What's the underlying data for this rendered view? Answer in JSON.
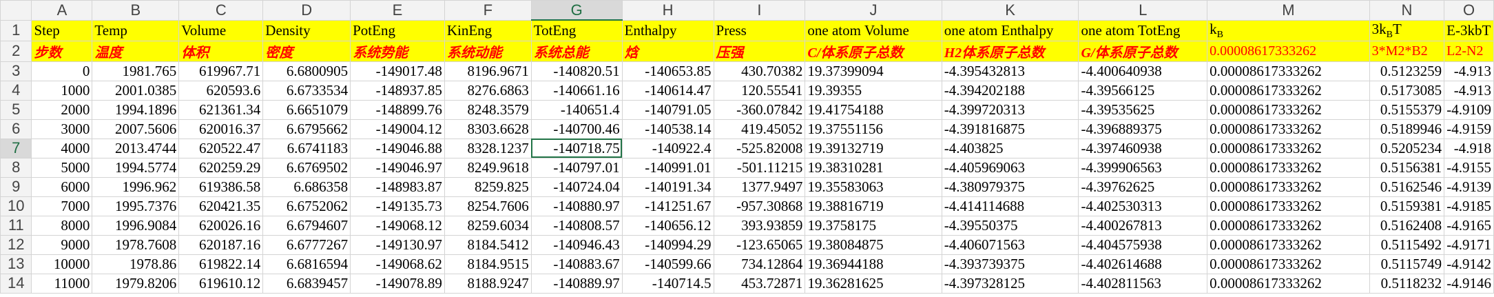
{
  "column_headers": [
    "A",
    "B",
    "C",
    "D",
    "E",
    "F",
    "G",
    "H",
    "I",
    "J",
    "K",
    "L",
    "M",
    "N",
    "O"
  ],
  "selected_column": "G",
  "selected_row": 7,
  "header_row1": [
    "Step",
    "Temp",
    "Volume",
    "Density",
    "PotEng",
    "KinEng",
    "TotEng",
    "Enthalpy",
    "Press",
    "one atom Volume",
    "one atom Enthalpy",
    "one atom TotEng",
    "k",
    "3k",
    "E-3kbT"
  ],
  "header_row1_subscripts": {
    "M": "B",
    "N_sub": "B",
    "N_tail": "T"
  },
  "header_row2": [
    "步数",
    "温度",
    "体积",
    "密度",
    "系统势能",
    "系统动能",
    "系统总能",
    "焓",
    "压强",
    "C/体系原子总数",
    "H2体系原子总数",
    "G/体系原子总数",
    "0.00008617333262",
    "3*M2*B2",
    "L2-N2"
  ],
  "rows": [
    {
      "row": 3,
      "cells": [
        "0",
        "1981.765",
        "619967.71",
        "6.6800905",
        "-149017.48",
        "8196.9671",
        "-140820.51",
        "-140653.85",
        "430.70382",
        "19.37399094",
        "-4.395432813",
        "-4.400640938",
        "0.00008617333262",
        "0.5123259",
        "-4.913"
      ]
    },
    {
      "row": 4,
      "cells": [
        "1000",
        "2001.0385",
        "620593.6",
        "6.6733534",
        "-148937.85",
        "8276.6863",
        "-140661.16",
        "-140614.47",
        "120.55541",
        "19.39355",
        "-4.394202188",
        "-4.39566125",
        "0.00008617333262",
        "0.5173085",
        "-4.913"
      ]
    },
    {
      "row": 5,
      "cells": [
        "2000",
        "1994.1896",
        "621361.34",
        "6.6651079",
        "-148899.76",
        "8248.3579",
        "-140651.4",
        "-140791.05",
        "-360.07842",
        "19.41754188",
        "-4.399720313",
        "-4.39535625",
        "0.00008617333262",
        "0.5155379",
        "-4.9109"
      ]
    },
    {
      "row": 6,
      "cells": [
        "3000",
        "2007.5606",
        "620016.37",
        "6.6795662",
        "-149004.12",
        "8303.6628",
        "-140700.46",
        "-140538.14",
        "419.45052",
        "19.37551156",
        "-4.391816875",
        "-4.396889375",
        "0.00008617333262",
        "0.5189946",
        "-4.9159"
      ]
    },
    {
      "row": 7,
      "cells": [
        "4000",
        "2013.4744",
        "620522.47",
        "6.6741183",
        "-149046.88",
        "8328.1237",
        "-140718.75",
        "-140922.4",
        "-525.82008",
        "19.39132719",
        "-4.403825",
        "-4.397460938",
        "0.00008617333262",
        "0.5205234",
        "-4.918"
      ]
    },
    {
      "row": 8,
      "cells": [
        "5000",
        "1994.5774",
        "620259.29",
        "6.6769502",
        "-149046.97",
        "8249.9618",
        "-140797.01",
        "-140991.01",
        "-501.11215",
        "19.38310281",
        "-4.405969063",
        "-4.399906563",
        "0.00008617333262",
        "0.5156381",
        "-4.9155"
      ]
    },
    {
      "row": 9,
      "cells": [
        "6000",
        "1996.962",
        "619386.58",
        "6.686358",
        "-148983.87",
        "8259.825",
        "-140724.04",
        "-140191.34",
        "1377.9497",
        "19.35583063",
        "-4.380979375",
        "-4.39762625",
        "0.00008617333262",
        "0.5162546",
        "-4.9139"
      ]
    },
    {
      "row": 10,
      "cells": [
        "7000",
        "1995.7376",
        "620421.35",
        "6.6752062",
        "-149135.73",
        "8254.7606",
        "-140880.97",
        "-141251.67",
        "-957.30868",
        "19.38816719",
        "-4.414114688",
        "-4.402530313",
        "0.00008617333262",
        "0.5159381",
        "-4.9185"
      ]
    },
    {
      "row": 11,
      "cells": [
        "8000",
        "1996.9084",
        "620026.16",
        "6.6794607",
        "-149068.12",
        "8259.6034",
        "-140808.57",
        "-140656.12",
        "393.93859",
        "19.3758175",
        "-4.39550375",
        "-4.400267813",
        "0.00008617333262",
        "0.5162408",
        "-4.9165"
      ]
    },
    {
      "row": 12,
      "cells": [
        "9000",
        "1978.7608",
        "620187.16",
        "6.6777267",
        "-149130.97",
        "8184.5412",
        "-140946.43",
        "-140994.29",
        "-123.65065",
        "19.38084875",
        "-4.406071563",
        "-4.404575938",
        "0.00008617333262",
        "0.5115492",
        "-4.9171"
      ]
    },
    {
      "row": 13,
      "cells": [
        "10000",
        "1978.86",
        "619822.14",
        "6.6816594",
        "-149068.62",
        "8184.9515",
        "-140883.67",
        "-140599.66",
        "734.12864",
        "19.36944188",
        "-4.393739375",
        "-4.402614688",
        "0.00008617333262",
        "0.5115749",
        "-4.9142"
      ]
    },
    {
      "row": 14,
      "cells": [
        "11000",
        "1979.8206",
        "619610.12",
        "6.6839457",
        "-149078.89",
        "8188.9247",
        "-140889.97",
        "-140714.5",
        "453.72871",
        "19.36281625",
        "-4.397328125",
        "-4.402811563",
        "0.00008617333262",
        "0.5118232",
        "-4.9146"
      ]
    }
  ],
  "row_numbers": [
    "1",
    "2",
    "3",
    "4",
    "5",
    "6",
    "7",
    "8",
    "9",
    "10",
    "11",
    "12",
    "13",
    "14"
  ],
  "text_columns": [
    9,
    10,
    11,
    12
  ]
}
